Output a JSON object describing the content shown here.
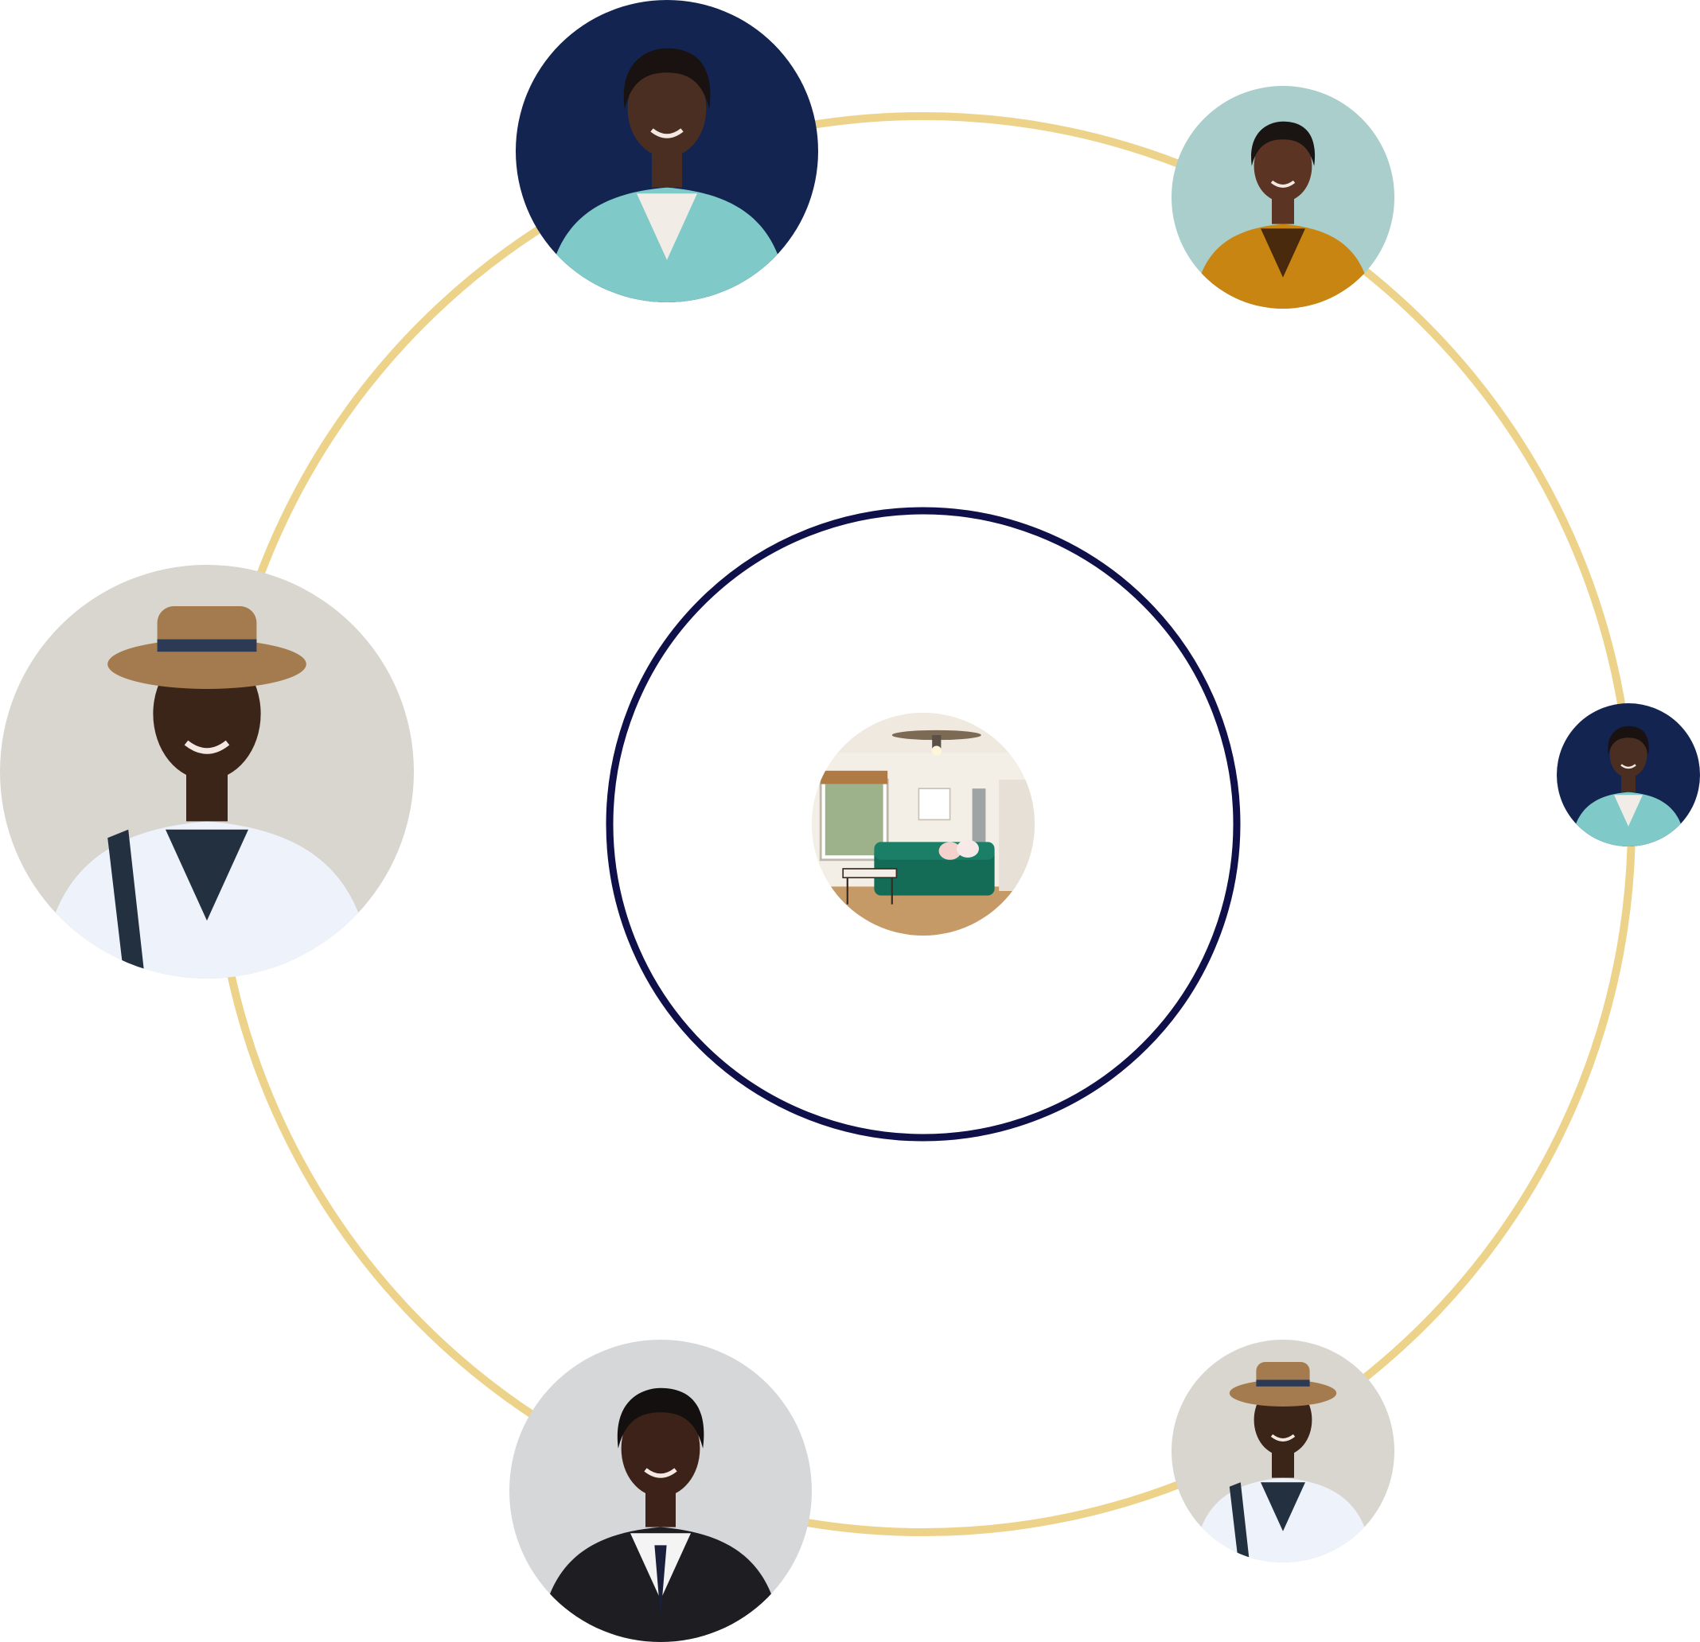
{
  "colors": {
    "outer_ring": "#EDD28A",
    "inner_ring": "#0F1049",
    "background": "#FFFFFF"
  },
  "center": {
    "photo": "living-room-photo",
    "scene": "room-with-green-sofa"
  },
  "avatars": [
    {
      "id": "woman-teal-blazer",
      "subject": "woman-in-teal-blazer",
      "tones": {
        "bg": "#12244F",
        "top": "#7FC9C8",
        "inner": "#F1ECE6",
        "skin": "#4A2E22",
        "hair": "#1A1210"
      }
    },
    {
      "id": "woman-orange-print",
      "subject": "woman-in-orange-print-top",
      "tones": {
        "bg": "#A9CECB",
        "top": "#C98512",
        "inner": "#4A2A0C",
        "skin": "#5B3424",
        "hair": "#1A1412"
      }
    },
    {
      "id": "man-straw-hat-large",
      "subject": "man-in-straw-hat-with-backpack",
      "tones": {
        "bg": "#D9D6CF",
        "top": "#EEF2FA",
        "inner": "#22303F",
        "skin": "#3B2418",
        "hair": "#A47B4E"
      }
    },
    {
      "id": "woman-teal-blazer-small",
      "subject": "woman-in-teal-blazer",
      "tones": {
        "bg": "#12244F",
        "top": "#7FC9C8",
        "inner": "#F1ECE6",
        "skin": "#4A2E22",
        "hair": "#1A1210"
      }
    },
    {
      "id": "man-black-suit",
      "subject": "smiling-man-in-black-suit",
      "tones": {
        "bg": "#D5D7D9",
        "top": "#1D1D22",
        "inner": "#F4F4F4",
        "skin": "#3C2218",
        "hair": "#141010"
      }
    },
    {
      "id": "man-straw-hat-small",
      "subject": "man-in-straw-hat-with-backpack",
      "tones": {
        "bg": "#D9D6CF",
        "top": "#EEF2FA",
        "inner": "#22303F",
        "skin": "#3B2418",
        "hair": "#A47B4E"
      }
    }
  ]
}
